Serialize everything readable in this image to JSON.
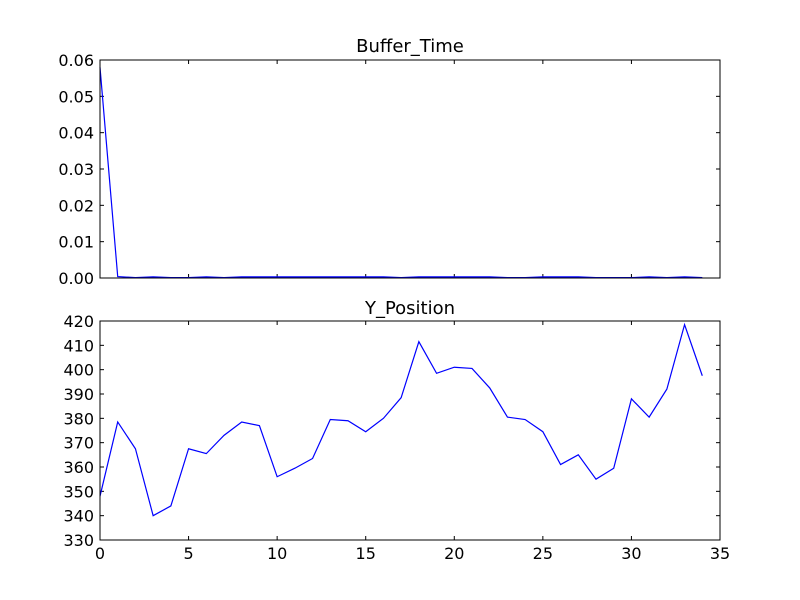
{
  "chart_data": [
    {
      "type": "line",
      "title": "Buffer_Time",
      "xlabel": "",
      "ylabel": "",
      "xlim": [
        0,
        35
      ],
      "ylim": [
        0.0,
        0.06
      ],
      "xticks": [
        0,
        5,
        10,
        15,
        20,
        25,
        30,
        35
      ],
      "yticks": [
        "0.00",
        "0.01",
        "0.02",
        "0.03",
        "0.04",
        "0.05",
        "0.06"
      ],
      "x_tick_labels_shown": false,
      "grid": false,
      "color": "#0000ff",
      "series": [
        {
          "x": [
            0,
            1,
            2,
            3,
            4,
            5,
            6,
            7,
            8,
            9,
            10,
            11,
            12,
            13,
            14,
            15,
            16,
            17,
            18,
            19,
            20,
            21,
            22,
            23,
            24,
            25,
            26,
            27,
            28,
            29,
            30,
            31,
            32,
            33,
            34
          ],
          "values": [
            0.058,
            0.0004,
            0.0001,
            0.0003,
            0.0001,
            0.0001,
            0.0003,
            0.0001,
            0.0003,
            0.0003,
            0.0003,
            0.0003,
            0.0003,
            0.0003,
            0.0003,
            0.0003,
            0.0003,
            0.0001,
            0.0003,
            0.0003,
            0.0003,
            0.0003,
            0.0003,
            0.0001,
            0.0001,
            0.0003,
            0.0003,
            0.0003,
            0.0001,
            0.0001,
            0.0001,
            0.0003,
            0.0001,
            0.0003,
            0.0001
          ]
        }
      ]
    },
    {
      "type": "line",
      "title": "Y_Position",
      "xlabel": "",
      "ylabel": "",
      "xlim": [
        0,
        35
      ],
      "ylim": [
        330,
        420
      ],
      "xticks": [
        "0",
        "5",
        "10",
        "15",
        "20",
        "25",
        "30",
        "35"
      ],
      "yticks": [
        "330",
        "340",
        "350",
        "360",
        "370",
        "380",
        "390",
        "400",
        "410",
        "420"
      ],
      "x_tick_labels_shown": true,
      "grid": false,
      "color": "#0000ff",
      "series": [
        {
          "x": [
            0,
            1,
            2,
            3,
            4,
            5,
            6,
            7,
            8,
            9,
            10,
            11,
            12,
            13,
            14,
            15,
            16,
            17,
            18,
            19,
            20,
            21,
            22,
            23,
            24,
            25,
            26,
            27,
            28,
            29,
            30,
            31,
            32,
            33,
            34
          ],
          "values": [
            348,
            378.5,
            367.5,
            340,
            344,
            367.5,
            365.5,
            373,
            378.5,
            377,
            356,
            359.5,
            363.5,
            379.5,
            379,
            374.5,
            380,
            388.5,
            411.5,
            398.5,
            401,
            400.5,
            392.5,
            380.5,
            379.5,
            374.5,
            361,
            365,
            355,
            359.5,
            388,
            380.5,
            392,
            418.5,
            397.5
          ]
        }
      ]
    }
  ]
}
